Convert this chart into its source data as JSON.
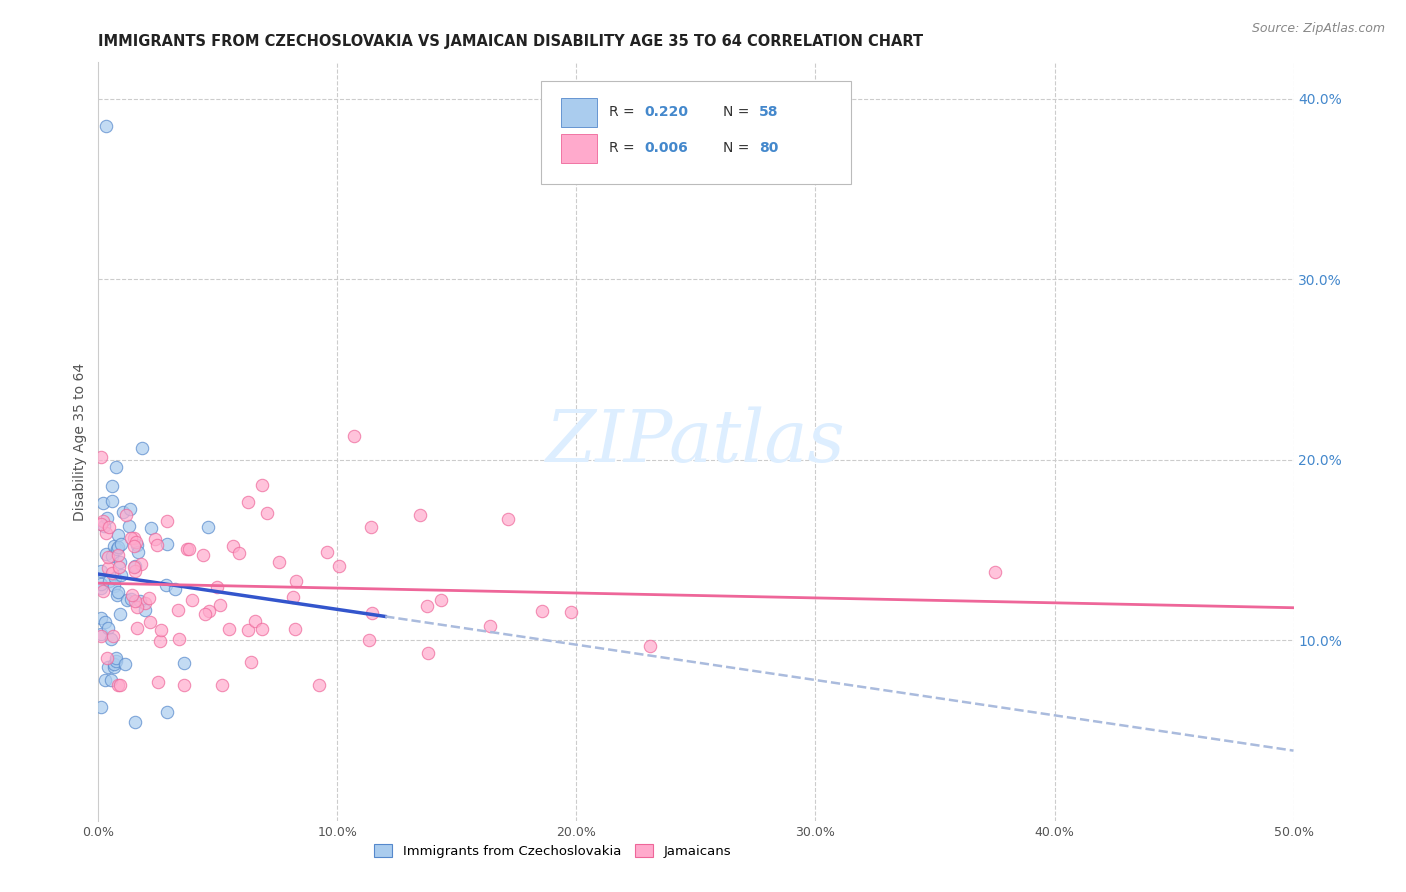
{
  "title": "IMMIGRANTS FROM CZECHOSLOVAKIA VS JAMAICAN DISABILITY AGE 35 TO 64 CORRELATION CHART",
  "source": "Source: ZipAtlas.com",
  "ylabel": "Disability Age 35 to 64",
  "xlim": [
    0.0,
    0.5
  ],
  "ylim": [
    0.0,
    0.42
  ],
  "color_czech": "#aaccee",
  "color_jamaican": "#ffaacc",
  "edge_czech": "#5588cc",
  "edge_jamaican": "#ee6699",
  "trend_blue": "#3355cc",
  "trend_dash": "#aabbdd",
  "trend_pink": "#ee6699",
  "watermark_color": "#ddeeff",
  "background_color": "#ffffff",
  "grid_color": "#cccccc",
  "title_color": "#222222",
  "ylabel_color": "#555555",
  "tick_color": "#555555",
  "right_tick_color": "#4488cc",
  "source_color": "#888888",
  "legend_r1": "0.220",
  "legend_n1": "58",
  "legend_r2": "0.006",
  "legend_n2": "80"
}
